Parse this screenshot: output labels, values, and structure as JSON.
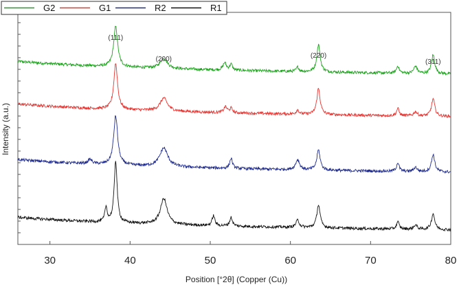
{
  "chart_data": {
    "type": "line",
    "xlabel": "Position [°2θ] (Copper (Cu))",
    "ylabel": "Intensity (a.u.)",
    "xlim": [
      26,
      80
    ],
    "xticks": [
      "30",
      "40",
      "50",
      "60",
      "70",
      "80"
    ],
    "grid": false,
    "legend_position": "top-left",
    "peak_labels": [
      {
        "text": "(111)",
        "x": 38.2
      },
      {
        "text": "(200)",
        "x": 44.2
      },
      {
        "text": "(220)",
        "x": 63.5
      },
      {
        "text": "(311)",
        "x": 77.8
      }
    ],
    "series": [
      {
        "name": "G2",
        "color": "#1aa31a",
        "offset": 3,
        "peaks": [
          [
            38.2,
            0.3,
            0.28
          ],
          [
            44.2,
            0.55,
            0.07
          ],
          [
            51.8,
            0.25,
            0.05
          ],
          [
            52.6,
            0.2,
            0.04
          ],
          [
            60.9,
            0.2,
            0.03
          ],
          [
            63.5,
            0.25,
            0.19
          ],
          [
            73.4,
            0.2,
            0.05
          ],
          [
            75.6,
            0.25,
            0.05
          ],
          [
            77.8,
            0.25,
            0.13
          ]
        ]
      },
      {
        "name": "G1",
        "color": "#e8332f",
        "offset": 2,
        "peaks": [
          [
            38.2,
            0.28,
            0.32
          ],
          [
            44.2,
            0.55,
            0.09
          ],
          [
            51.9,
            0.25,
            0.04
          ],
          [
            52.6,
            0.2,
            0.03
          ],
          [
            60.9,
            0.2,
            0.03
          ],
          [
            63.5,
            0.25,
            0.18
          ],
          [
            73.4,
            0.2,
            0.05
          ],
          [
            75.6,
            0.25,
            0.03
          ],
          [
            77.8,
            0.25,
            0.12
          ]
        ]
      },
      {
        "name": "R2",
        "color": "#1e2a8c",
        "offset": 1,
        "peaks": [
          [
            35.0,
            0.3,
            0.03
          ],
          [
            38.2,
            0.3,
            0.34
          ],
          [
            44.2,
            0.6,
            0.13
          ],
          [
            52.6,
            0.2,
            0.07
          ],
          [
            60.9,
            0.3,
            0.07
          ],
          [
            63.5,
            0.25,
            0.14
          ],
          [
            73.4,
            0.2,
            0.06
          ],
          [
            75.6,
            0.25,
            0.03
          ],
          [
            77.8,
            0.25,
            0.12
          ]
        ]
      },
      {
        "name": "R1",
        "color": "#111111",
        "offset": 0,
        "peaks": [
          [
            37.0,
            0.18,
            0.1
          ],
          [
            38.2,
            0.22,
            0.43
          ],
          [
            44.2,
            0.5,
            0.18
          ],
          [
            50.4,
            0.2,
            0.07
          ],
          [
            52.6,
            0.2,
            0.06
          ],
          [
            60.9,
            0.25,
            0.05
          ],
          [
            63.5,
            0.25,
            0.16
          ],
          [
            73.4,
            0.2,
            0.05
          ],
          [
            75.6,
            0.25,
            0.03
          ],
          [
            77.8,
            0.25,
            0.11
          ]
        ]
      }
    ]
  }
}
